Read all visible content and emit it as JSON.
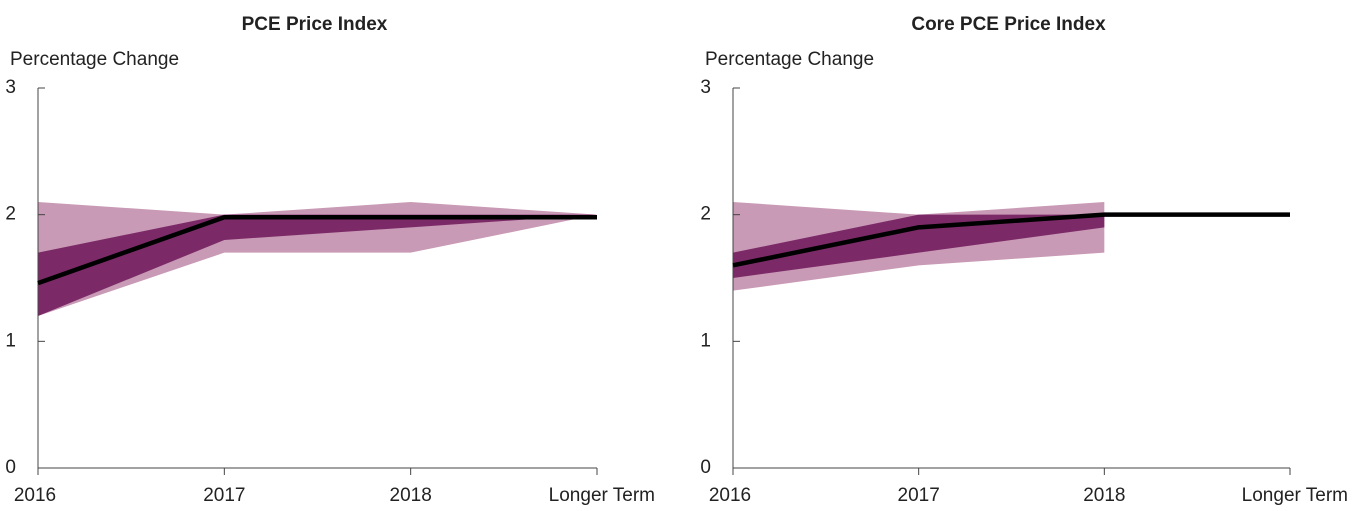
{
  "chart_data": [
    {
      "type": "line",
      "title": "PCE Price Index",
      "ylabel": "Percentage Change",
      "categories": [
        "2016",
        "2017",
        "2018",
        "Longer Term"
      ],
      "ylim": [
        0,
        3
      ],
      "yticks": [
        0,
        1,
        2,
        3
      ],
      "bands": [
        {
          "color": "#c99ab5",
          "low": [
            1.2,
            1.7,
            1.7,
            2.0
          ],
          "high": [
            2.1,
            2.0,
            2.1,
            2.0
          ]
        },
        {
          "color": "#7b2a67",
          "low": [
            1.2,
            1.8,
            1.9,
            2.0
          ],
          "high": [
            1.7,
            2.0,
            2.0,
            2.0
          ]
        }
      ],
      "series": [
        {
          "color": "#000000",
          "values": [
            1.46,
            1.98,
            1.98,
            1.98
          ]
        }
      ]
    },
    {
      "type": "line",
      "title": "Core PCE Price Index",
      "ylabel": "Percentage Change",
      "categories": [
        "2016",
        "2017",
        "2018",
        "Longer Term"
      ],
      "ylim": [
        0,
        3
      ],
      "yticks": [
        0,
        1,
        2,
        3
      ],
      "bands": [
        {
          "color": "#c99ab5",
          "low": [
            1.4,
            1.6,
            1.7,
            null
          ],
          "high": [
            2.1,
            2.0,
            2.1,
            null
          ]
        },
        {
          "color": "#7b2a67",
          "low": [
            1.5,
            1.7,
            1.9,
            null
          ],
          "high": [
            1.7,
            2.0,
            2.0,
            null
          ]
        }
      ],
      "series": [
        {
          "color": "#000000",
          "values": [
            1.6,
            1.9,
            2.0,
            2.0
          ]
        }
      ]
    }
  ]
}
